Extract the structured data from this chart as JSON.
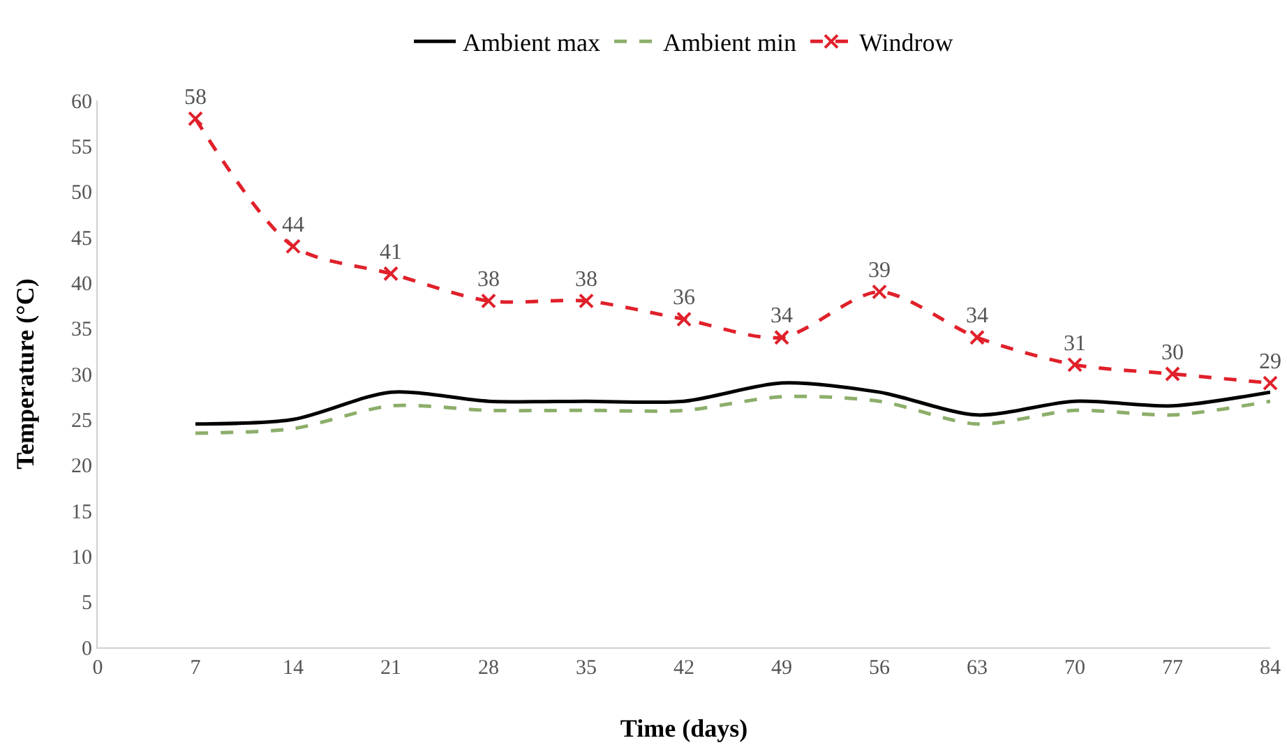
{
  "chart_data": {
    "type": "line",
    "xlabel": "Time (days)",
    "ylabel": "Temperature (°C)",
    "x": [
      7,
      14,
      21,
      28,
      35,
      42,
      49,
      56,
      63,
      70,
      77,
      84
    ],
    "series": [
      {
        "name": "Ambient max",
        "color": "#000000",
        "line_style": "solid",
        "marker": "none",
        "values": [
          24.5,
          25,
          28,
          27,
          27,
          27,
          29,
          28,
          25.5,
          27,
          26.5,
          28
        ]
      },
      {
        "name": "Ambient min",
        "color": "#8cae6a",
        "line_style": "dashed",
        "marker": "none",
        "values": [
          23.5,
          24,
          26.5,
          26,
          26,
          26,
          27.5,
          27,
          24.5,
          26,
          25.5,
          27
        ]
      },
      {
        "name": "Windrow",
        "color": "#e0202a",
        "line_style": "dashed",
        "marker": "cross",
        "data_labels": true,
        "values": [
          58,
          44,
          41,
          38,
          38,
          36,
          34,
          39,
          34,
          31,
          30,
          29
        ]
      }
    ],
    "xlim": [
      0,
      84
    ],
    "xticks": [
      0,
      7,
      14,
      21,
      28,
      35,
      42,
      49,
      56,
      63,
      70,
      77,
      84
    ],
    "ylim": [
      0,
      60
    ],
    "yticks": [
      0,
      5,
      10,
      15,
      20,
      25,
      30,
      35,
      40,
      45,
      50,
      55,
      60
    ],
    "grid": false,
    "legend": "top"
  }
}
